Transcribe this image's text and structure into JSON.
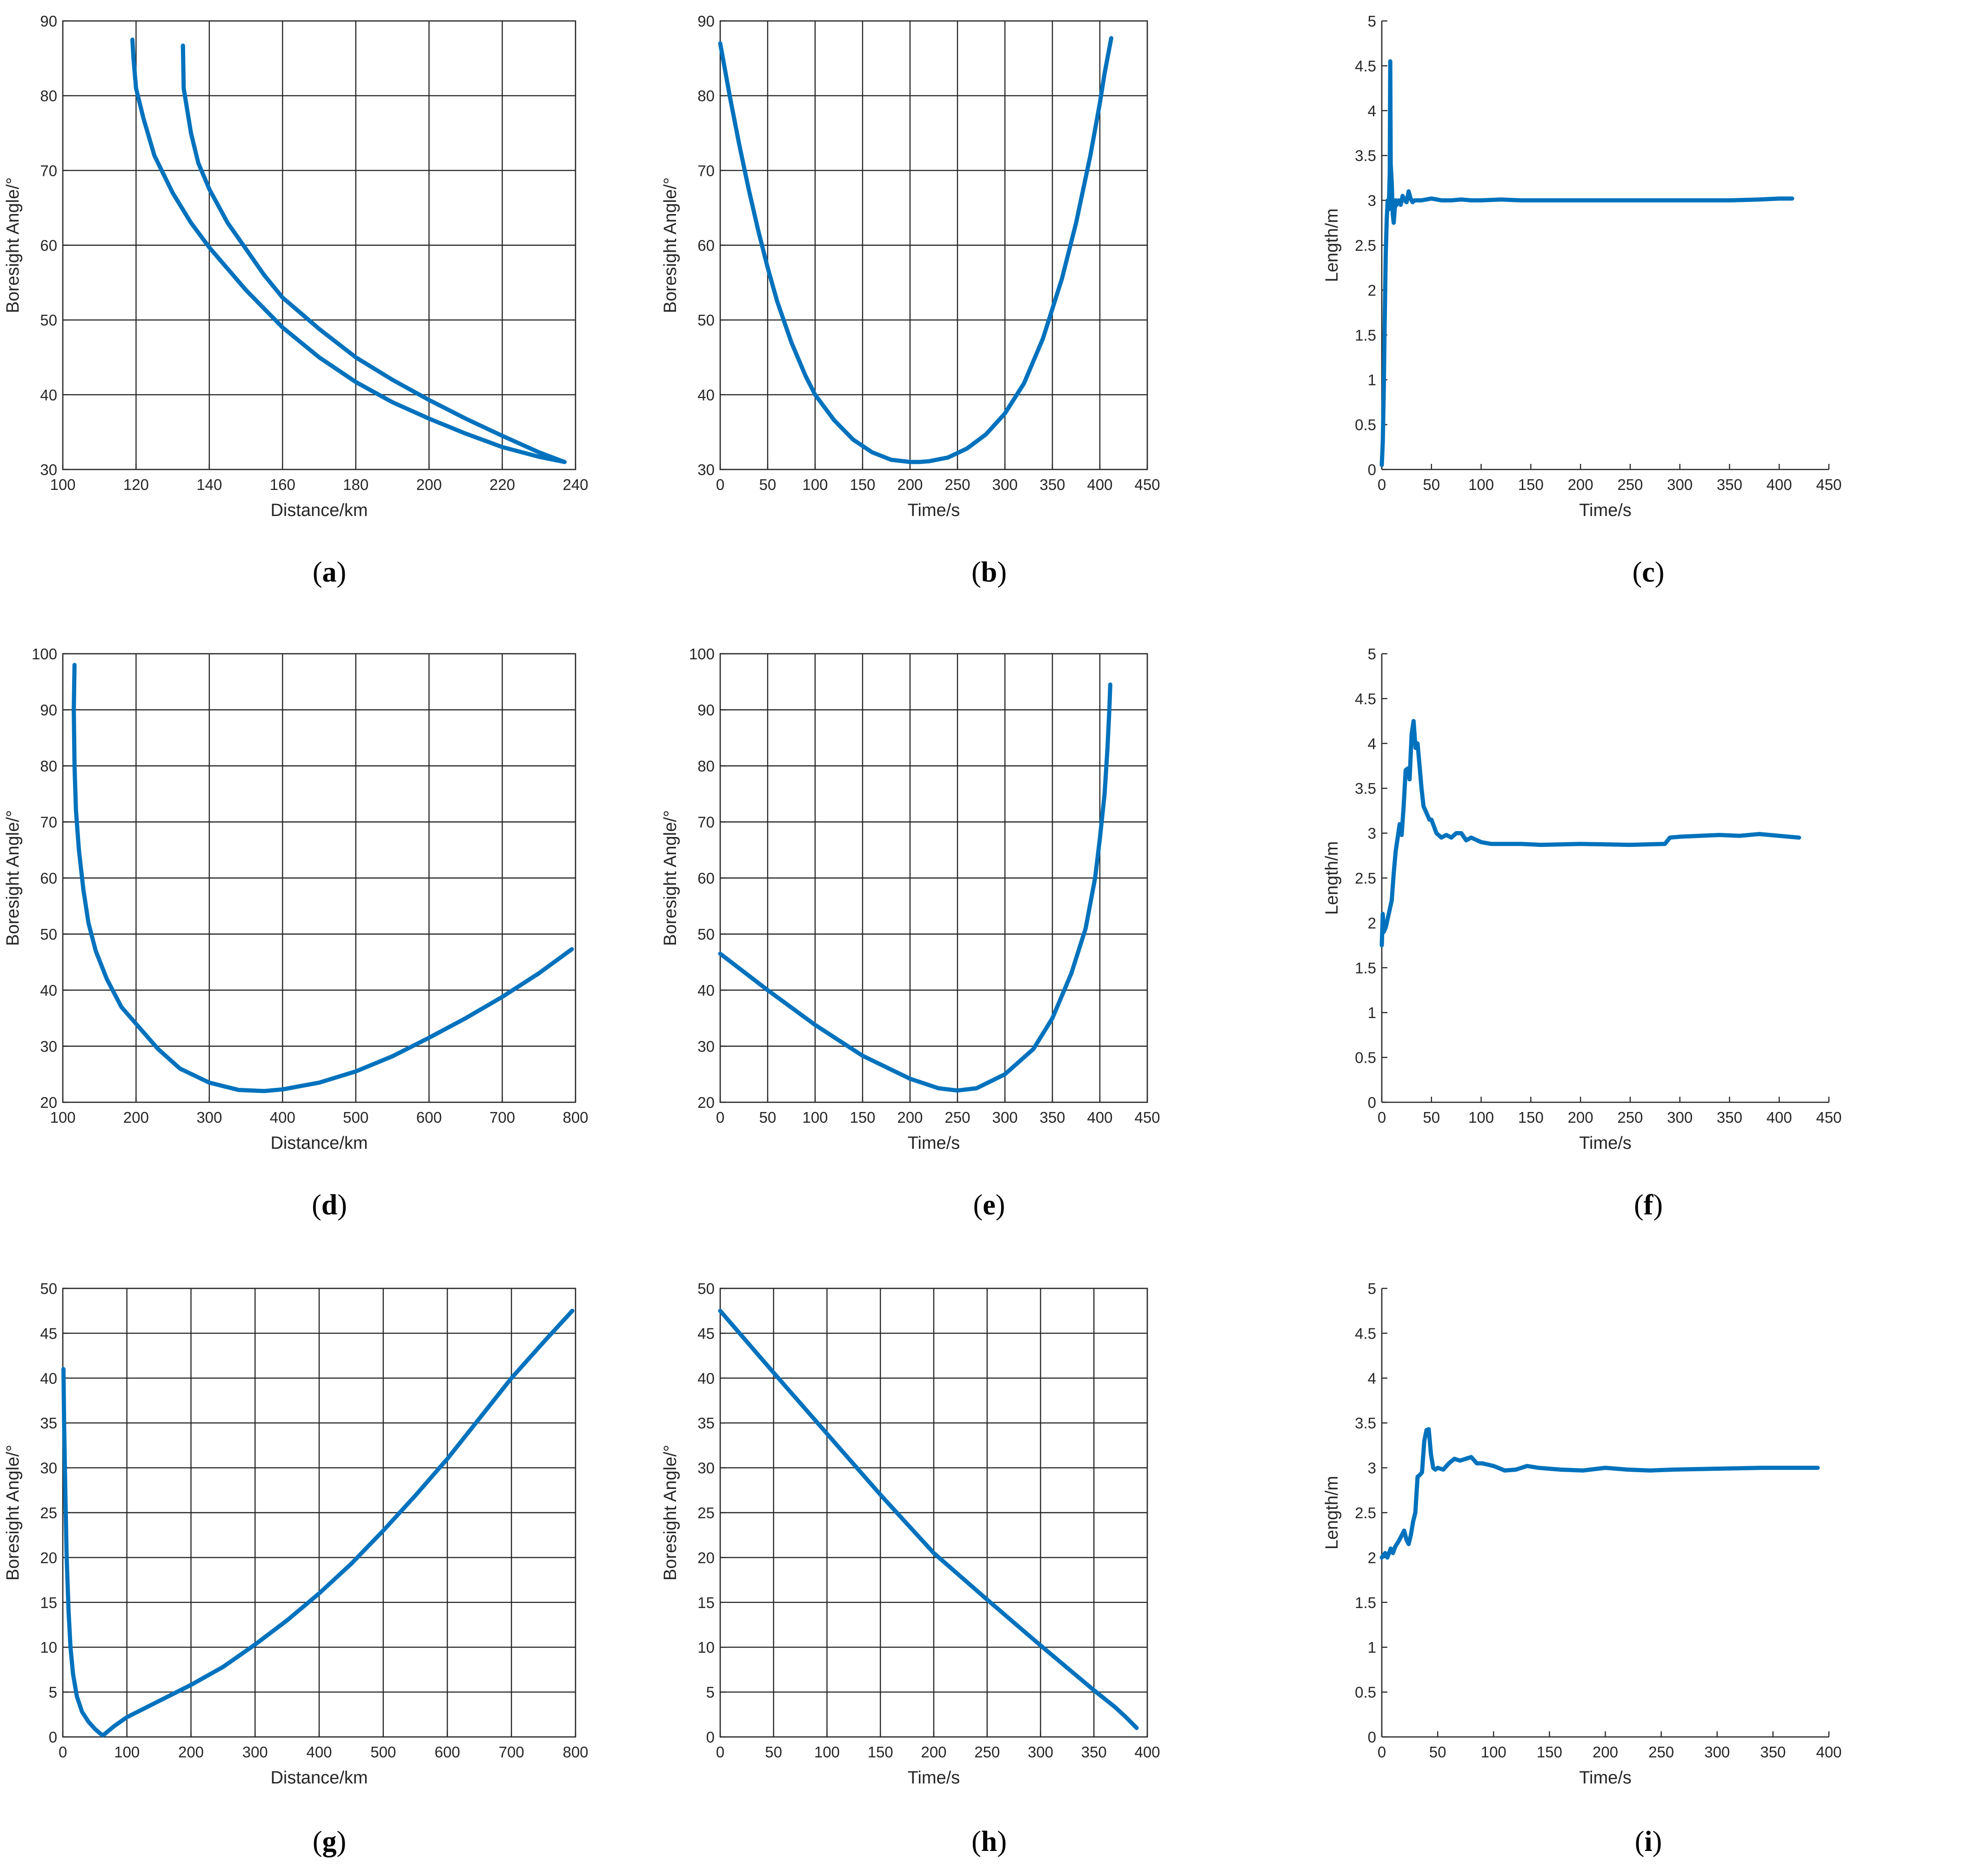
{
  "figure": {
    "panels": [
      "a",
      "b",
      "c",
      "d",
      "e",
      "f",
      "g",
      "h",
      "i"
    ]
  },
  "colors": {
    "line": "#0072BD",
    "grid": "#262626",
    "axis": "#262626"
  },
  "chart_data": [
    {
      "id": "a",
      "panel_label": "a",
      "type": "line",
      "xlabel": "Distance/km",
      "ylabel": "Boresight Angle/°",
      "xlim": [
        100,
        240
      ],
      "ylim": [
        30,
        90
      ],
      "xticks": [
        100,
        120,
        140,
        160,
        180,
        200,
        220,
        240
      ],
      "yticks": [
        30,
        40,
        50,
        60,
        70,
        80,
        90
      ],
      "grid": true,
      "series": [
        {
          "x": [
            119,
            119.3,
            120,
            122,
            125,
            130,
            135,
            140,
            150,
            160,
            170,
            180,
            190,
            200,
            210,
            220,
            230,
            237
          ],
          "y": [
            87.5,
            85,
            81,
            77,
            72,
            67,
            63,
            59.7,
            54,
            49,
            45,
            41.7,
            39,
            36.8,
            34.8,
            33,
            31.7,
            31
          ]
        },
        {
          "x": [
            237,
            230,
            220,
            210,
            200,
            190,
            180,
            170,
            160,
            155,
            150,
            145,
            140,
            137,
            135,
            133,
            132.8
          ],
          "y": [
            31,
            32.3,
            34.5,
            36.8,
            39.3,
            42,
            45,
            48.8,
            53,
            56,
            59.5,
            63,
            67.5,
            71,
            75,
            81,
            86.7
          ]
        }
      ]
    },
    {
      "id": "b",
      "panel_label": "b",
      "type": "line",
      "xlabel": "Time/s",
      "ylabel": "Boresight Angle/°",
      "xlim": [
        0,
        450
      ],
      "ylim": [
        30,
        90
      ],
      "xticks": [
        0,
        50,
        100,
        150,
        200,
        250,
        300,
        350,
        400,
        450
      ],
      "yticks": [
        30,
        40,
        50,
        60,
        70,
        80,
        90
      ],
      "grid": true,
      "series": [
        {
          "x": [
            0,
            10,
            20,
            30,
            40,
            50,
            60,
            75,
            90,
            100,
            120,
            140,
            160,
            180,
            200,
            210,
            220,
            240,
            260,
            280,
            300,
            320,
            340,
            360,
            375,
            390,
            400,
            405,
            412
          ],
          "y": [
            87,
            80,
            73.5,
            67.5,
            62,
            57,
            52.5,
            47,
            42.5,
            40,
            36.6,
            34,
            32.3,
            31.3,
            31,
            31,
            31.1,
            31.6,
            32.8,
            34.7,
            37.5,
            41.5,
            47.5,
            55.5,
            63,
            72,
            79,
            83,
            87.7
          ]
        }
      ]
    },
    {
      "id": "c",
      "panel_label": "c",
      "type": "line",
      "xlabel": "Time/s",
      "ylabel": "Length/m",
      "xlim": [
        0,
        450
      ],
      "ylim": [
        0,
        5
      ],
      "xticks": [
        0,
        50,
        100,
        150,
        200,
        250,
        300,
        350,
        400,
        450
      ],
      "yticks": [
        0,
        0.5,
        1,
        1.5,
        2,
        2.5,
        3,
        3.5,
        4,
        4.5,
        5
      ],
      "grid": false,
      "series": [
        {
          "x": [
            0,
            1,
            2,
            3,
            4,
            5,
            6,
            7,
            8,
            8.5,
            9,
            10,
            11,
            12,
            13,
            14,
            15,
            17,
            19,
            21,
            23,
            25,
            27,
            29,
            31,
            33,
            35,
            40,
            50,
            60,
            70,
            80,
            90,
            100,
            120,
            140,
            160,
            180,
            200,
            250,
            300,
            350,
            380,
            400,
            413
          ],
          "y": [
            0.05,
            0.3,
            0.9,
            1.7,
            2.4,
            2.8,
            3.0,
            2.9,
            3.3,
            4.55,
            3.4,
            3.2,
            2.85,
            2.75,
            2.9,
            3.0,
            2.95,
            3.0,
            2.95,
            3.05,
            3.0,
            2.98,
            3.1,
            3.02,
            2.98,
            3.0,
            3.0,
            3.0,
            3.02,
            3.0,
            3.0,
            3.01,
            3.0,
            3.0,
            3.01,
            3.0,
            3.0,
            3.0,
            3.0,
            3.0,
            3.0,
            3.0,
            3.01,
            3.02,
            3.02
          ]
        }
      ]
    },
    {
      "id": "d",
      "panel_label": "d",
      "type": "line",
      "xlabel": "Distance/km",
      "ylabel": "Boresight Angle/°",
      "xlim": [
        100,
        800
      ],
      "ylim": [
        20,
        100
      ],
      "xticks": [
        100,
        200,
        300,
        400,
        500,
        600,
        700,
        800
      ],
      "yticks": [
        20,
        30,
        40,
        50,
        60,
        70,
        80,
        90,
        100
      ],
      "grid": true,
      "series": [
        {
          "x": [
            116,
            115,
            116,
            118,
            122,
            128,
            135,
            145,
            160,
            180,
            200,
            230,
            260,
            300,
            340,
            375,
            400,
            450,
            500,
            550,
            600,
            650,
            700,
            750,
            795
          ],
          "y": [
            98,
            90,
            80,
            72,
            65,
            58,
            52,
            47,
            42,
            37,
            34,
            29.5,
            26,
            23.5,
            22.2,
            22,
            22.3,
            23.5,
            25.5,
            28.2,
            31.5,
            35,
            38.8,
            43,
            47.3
          ]
        }
      ]
    },
    {
      "id": "e",
      "panel_label": "e",
      "type": "line",
      "xlabel": "Time/s",
      "ylabel": "Boresight Angle/°",
      "xlim": [
        0,
        450
      ],
      "ylim": [
        20,
        100
      ],
      "xticks": [
        0,
        50,
        100,
        150,
        200,
        250,
        300,
        350,
        400,
        450
      ],
      "yticks": [
        20,
        30,
        40,
        50,
        60,
        70,
        80,
        90,
        100
      ],
      "grid": true,
      "series": [
        {
          "x": [
            0,
            50,
            100,
            150,
            200,
            230,
            250,
            270,
            300,
            330,
            350,
            370,
            385,
            395,
            400,
            405,
            408,
            410,
            411
          ],
          "y": [
            46.5,
            40,
            33.8,
            28.3,
            24.2,
            22.5,
            22.1,
            22.5,
            25,
            29.5,
            35,
            43,
            51,
            60,
            67,
            75,
            83,
            90,
            94.5
          ]
        }
      ]
    },
    {
      "id": "f",
      "panel_label": "f",
      "type": "line",
      "xlabel": "Time/s",
      "ylabel": "Length/m",
      "xlim": [
        0,
        450
      ],
      "ylim": [
        0,
        5
      ],
      "xticks": [
        0,
        50,
        100,
        150,
        200,
        250,
        300,
        350,
        400,
        450
      ],
      "yticks": [
        0,
        0.5,
        1,
        1.5,
        2,
        2.5,
        3,
        3.5,
        4,
        4.5,
        5
      ],
      "grid": false,
      "series": [
        {
          "x": [
            0,
            1,
            2,
            4,
            6,
            8,
            10,
            12,
            14,
            16,
            18,
            20,
            22,
            24,
            26,
            28,
            30,
            32,
            34,
            36,
            38,
            40,
            42,
            44,
            46,
            48,
            50,
            55,
            60,
            65,
            70,
            75,
            80,
            85,
            90,
            100,
            110,
            120,
            140,
            160,
            200,
            250,
            285,
            290,
            300,
            320,
            340,
            360,
            380,
            400,
            420
          ],
          "y": [
            1.75,
            2.1,
            1.9,
            1.95,
            2.05,
            2.15,
            2.25,
            2.55,
            2.8,
            2.95,
            3.1,
            2.98,
            3.3,
            3.7,
            3.72,
            3.6,
            4.1,
            4.25,
            3.95,
            4.0,
            3.75,
            3.5,
            3.3,
            3.25,
            3.2,
            3.15,
            3.15,
            3.0,
            2.95,
            2.98,
            2.95,
            3.0,
            3.0,
            2.92,
            2.95,
            2.9,
            2.88,
            2.88,
            2.88,
            2.87,
            2.88,
            2.87,
            2.88,
            2.95,
            2.96,
            2.97,
            2.98,
            2.97,
            2.99,
            2.97,
            2.95
          ]
        }
      ]
    },
    {
      "id": "g",
      "panel_label": "g",
      "type": "line",
      "xlabel": "Distance/km",
      "ylabel": "Boresight Angle/°",
      "xlim": [
        0,
        800
      ],
      "ylim": [
        0,
        50
      ],
      "xticks": [
        0,
        100,
        200,
        300,
        400,
        500,
        600,
        700,
        800
      ],
      "yticks": [
        0,
        5,
        10,
        15,
        20,
        25,
        30,
        35,
        40,
        45,
        50
      ],
      "grid": true,
      "series": [
        {
          "x": [
            1,
            2,
            4,
            6,
            9,
            12,
            16,
            22,
            30,
            40,
            50,
            58,
            62,
            65,
            70,
            80,
            100,
            150,
            200,
            250,
            300,
            350,
            400,
            450,
            500,
            550,
            600,
            650,
            700,
            750,
            795
          ],
          "y": [
            41,
            35,
            27,
            20,
            14,
            10,
            7,
            4.5,
            2.8,
            1.7,
            0.9,
            0.4,
            0.2,
            0.3,
            0.6,
            1.2,
            2.2,
            4,
            5.8,
            7.8,
            10.3,
            13,
            16,
            19.3,
            23,
            26.9,
            31,
            35.5,
            40,
            44,
            47.5
          ]
        }
      ]
    },
    {
      "id": "h",
      "panel_label": "h",
      "type": "line",
      "xlabel": "Time/s",
      "ylabel": "Boresight Angle/°",
      "xlim": [
        0,
        400
      ],
      "ylim": [
        0,
        50
      ],
      "xticks": [
        0,
        50,
        100,
        150,
        200,
        250,
        300,
        350,
        400
      ],
      "yticks": [
        0,
        5,
        10,
        15,
        20,
        25,
        30,
        35,
        40,
        45,
        50
      ],
      "grid": true,
      "series": [
        {
          "x": [
            0,
            50,
            100,
            150,
            200,
            250,
            300,
            350,
            370,
            380,
            390
          ],
          "y": [
            47.5,
            40.6,
            33.8,
            27,
            20.5,
            15.3,
            10.2,
            5.2,
            3.3,
            2.2,
            1.0
          ]
        }
      ]
    },
    {
      "id": "i",
      "panel_label": "i",
      "type": "line",
      "xlabel": "Time/s",
      "ylabel": "Length/m",
      "xlim": [
        0,
        400
      ],
      "ylim": [
        0,
        5
      ],
      "xticks": [
        0,
        50,
        100,
        150,
        200,
        250,
        300,
        350,
        400
      ],
      "yticks": [
        0,
        0.5,
        1,
        1.5,
        2,
        2.5,
        3,
        3.5,
        4,
        4.5,
        5
      ],
      "grid": false,
      "series": [
        {
          "x": [
            0,
            3,
            5,
            8,
            10,
            12,
            15,
            18,
            20,
            22,
            24,
            26,
            28,
            30,
            32,
            34,
            36,
            38,
            40,
            42,
            44,
            46,
            48,
            50,
            55,
            60,
            65,
            70,
            75,
            80,
            85,
            90,
            100,
            110,
            120,
            130,
            140,
            160,
            180,
            200,
            220,
            240,
            260,
            300,
            340,
            390
          ],
          "y": [
            2.0,
            2.05,
            2.0,
            2.1,
            2.05,
            2.12,
            2.18,
            2.25,
            2.3,
            2.2,
            2.15,
            2.25,
            2.4,
            2.5,
            2.9,
            2.92,
            2.95,
            3.3,
            3.42,
            3.43,
            3.15,
            3.0,
            2.98,
            3.0,
            2.98,
            3.05,
            3.1,
            3.08,
            3.1,
            3.12,
            3.05,
            3.05,
            3.02,
            2.97,
            2.98,
            3.02,
            3.0,
            2.98,
            2.97,
            3.0,
            2.98,
            2.97,
            2.98,
            2.99,
            3.0,
            3.0
          ]
        }
      ]
    }
  ]
}
